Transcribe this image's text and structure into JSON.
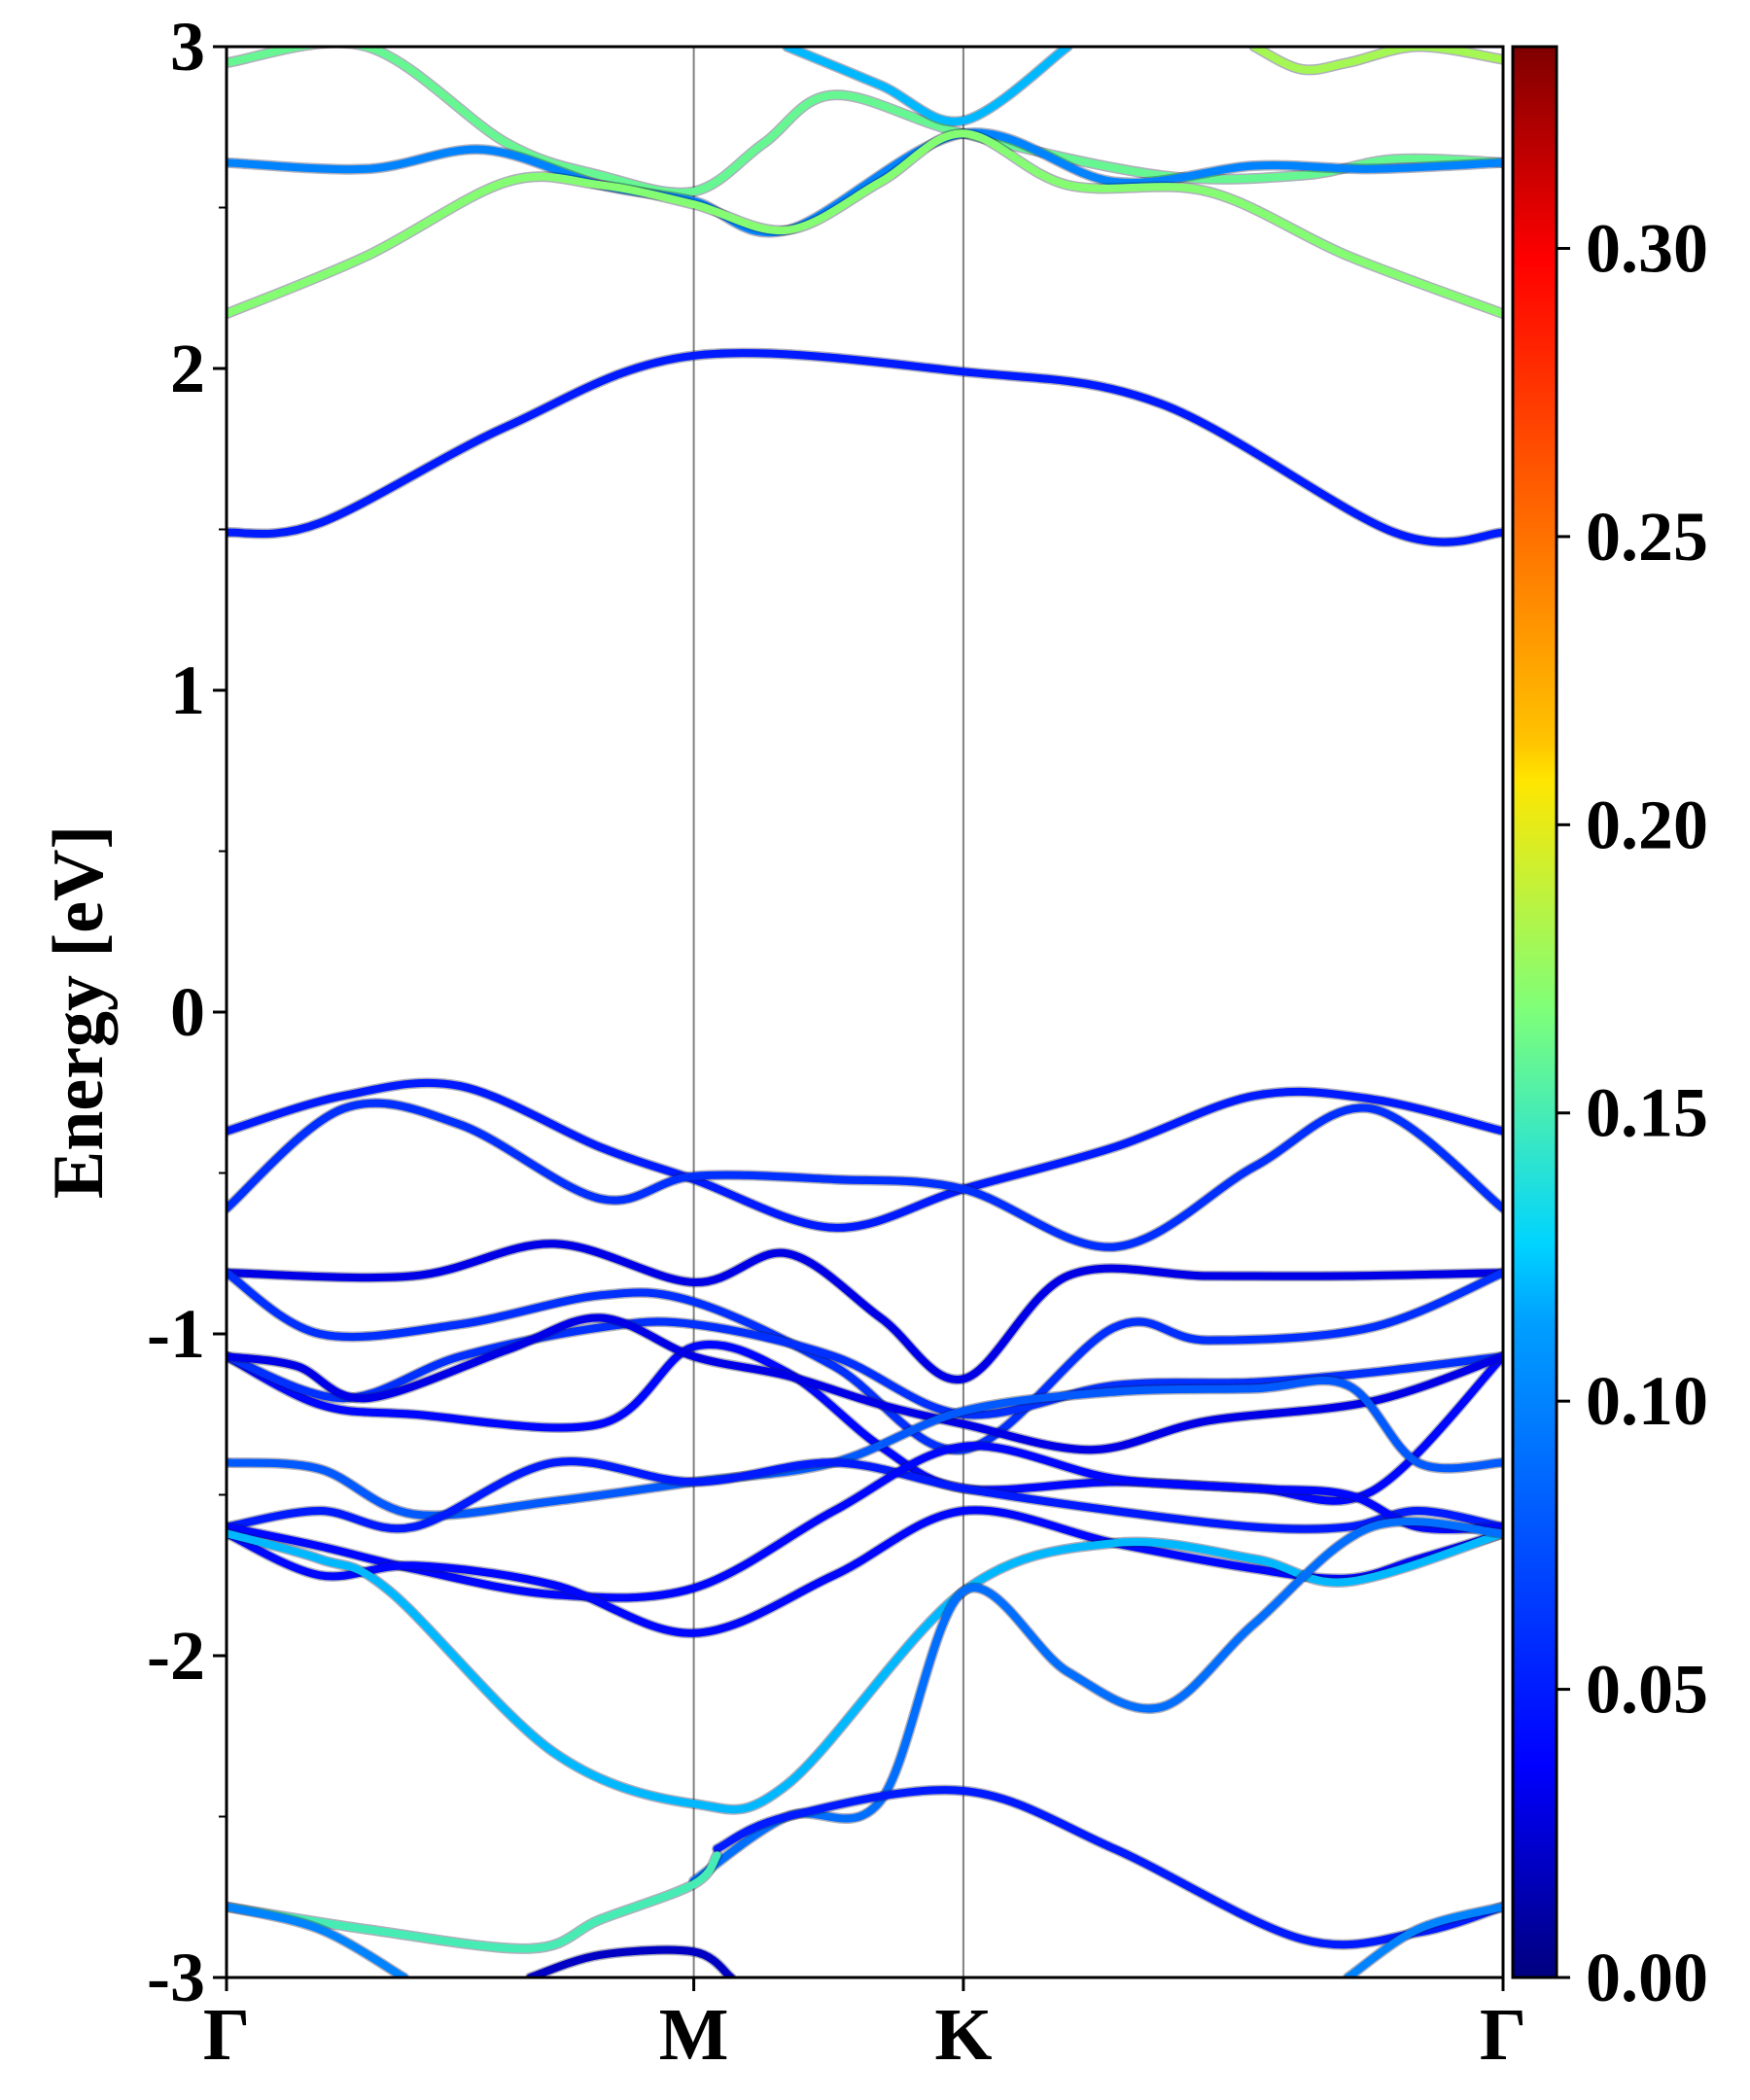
{
  "chart_data": {
    "type": "line",
    "title": "",
    "xlabel": "",
    "ylabel": "Energy [eV]",
    "ylim": [
      -3,
      3
    ],
    "xlim": [
      0,
      3
    ],
    "x_ticks": [
      {
        "pos": 0,
        "label": "Γ"
      },
      {
        "pos": 1,
        "label": "M"
      },
      {
        "pos": 1.577,
        "label": "K"
      },
      {
        "pos": 2.732,
        "label": "Γ"
      }
    ],
    "y_ticks": [
      {
        "value": 3,
        "label": "3"
      },
      {
        "value": 2,
        "label": "2"
      },
      {
        "value": 1,
        "label": "1"
      },
      {
        "value": 0,
        "label": "0"
      },
      {
        "value": -1,
        "label": "-1"
      },
      {
        "value": -2,
        "label": "-2"
      },
      {
        "value": -3,
        "label": "-3"
      }
    ],
    "y_minor_ticks": [
      2.5,
      1.5,
      0.5,
      -0.5,
      -1.5,
      -2.5
    ],
    "grid": false,
    "vertical_lines_at": [
      1,
      1.577
    ],
    "colorbar": {
      "colormap": "jet",
      "range": [
        0,
        0.335
      ],
      "ticks": [
        "0.00",
        "0.05",
        "0.10",
        "0.15",
        "0.20",
        "0.25",
        "0.30"
      ],
      "tick_values": [
        0,
        0.05,
        0.1,
        0.15,
        0.2,
        0.25,
        0.3
      ]
    },
    "series": [
      {
        "x": [
          0,
          0.3,
          0.6,
          0.8,
          1.0,
          1.15,
          1.3,
          1.577,
          2.0,
          2.3,
          2.5,
          2.732
        ],
        "values": [
          2.95,
          3.0,
          2.7,
          2.6,
          2.55,
          2.7,
          2.85,
          2.73,
          2.6,
          2.6,
          2.65,
          2.64
        ],
        "weight": 0.16
      },
      {
        "x": [
          0,
          0.3,
          0.55,
          0.8,
          1.0,
          1.2,
          1.577,
          1.9,
          2.2,
          2.45,
          2.732
        ],
        "values": [
          2.64,
          2.62,
          2.68,
          2.57,
          2.52,
          2.43,
          2.73,
          2.58,
          2.63,
          2.62,
          2.64
        ],
        "weight": 0.1
      },
      {
        "x": [
          0,
          0.3,
          0.6,
          0.8,
          1.0,
          1.2,
          1.4,
          1.577,
          1.8,
          2.1,
          2.4,
          2.732
        ],
        "values": [
          2.17,
          2.35,
          2.58,
          2.57,
          2.51,
          2.43,
          2.58,
          2.73,
          2.57,
          2.55,
          2.35,
          2.17
        ],
        "weight": 0.17
      },
      {
        "x": [
          1.2,
          1.4,
          1.577,
          1.8
        ],
        "values": [
          3.0,
          2.88,
          2.77,
          3.0
        ],
        "weight": 0.12
      },
      {
        "x": [
          2.2,
          2.3,
          2.4,
          2.55,
          2.732
        ],
        "values": [
          3.0,
          2.93,
          2.95,
          3.0,
          2.96
        ],
        "weight": 0.18
      },
      {
        "x": [
          0,
          0.2,
          0.6,
          1.0,
          1.577,
          2.0,
          2.5,
          2.732
        ],
        "values": [
          1.49,
          1.52,
          1.82,
          2.04,
          1.99,
          1.89,
          1.49,
          1.49
        ],
        "weight": 0.05
      },
      {
        "x": [
          0,
          0.25,
          0.5,
          0.8,
          1.0,
          1.3,
          1.577,
          1.9,
          2.2,
          2.45,
          2.732
        ],
        "values": [
          -0.37,
          -0.26,
          -0.23,
          -0.42,
          -0.52,
          -0.67,
          -0.55,
          -0.42,
          -0.26,
          -0.27,
          -0.37
        ],
        "weight": 0.05
      },
      {
        "x": [
          0,
          0.25,
          0.5,
          0.8,
          1.0,
          1.3,
          1.577,
          1.9,
          2.2,
          2.45,
          2.732
        ],
        "values": [
          -0.61,
          -0.3,
          -0.35,
          -0.58,
          -0.51,
          -0.52,
          -0.55,
          -0.73,
          -0.48,
          -0.3,
          -0.61
        ],
        "weight": 0.06
      },
      {
        "x": [
          0,
          0.4,
          0.7,
          1.0,
          1.2,
          1.4,
          1.577,
          1.8,
          2.1,
          2.4,
          2.732
        ],
        "values": [
          -0.81,
          -0.82,
          -0.72,
          -0.84,
          -0.75,
          -0.95,
          -1.14,
          -0.82,
          -0.82,
          -0.82,
          -0.81
        ],
        "weight": 0.03
      },
      {
        "x": [
          0,
          0.2,
          0.5,
          0.8,
          1.0,
          1.3,
          1.577,
          1.9,
          2.1,
          2.45,
          2.732
        ],
        "values": [
          -0.81,
          -1.0,
          -0.97,
          -0.88,
          -0.9,
          -1.1,
          -1.36,
          -0.98,
          -1.02,
          -0.98,
          -0.81
        ],
        "weight": 0.06
      },
      {
        "x": [
          0,
          0.2,
          0.4,
          0.8,
          1.0,
          1.2,
          1.4,
          1.577,
          1.9,
          2.2,
          2.45,
          2.732
        ],
        "values": [
          -1.07,
          -1.22,
          -1.25,
          -1.28,
          -1.04,
          -1.12,
          -1.35,
          -1.48,
          -1.46,
          -1.48,
          -1.49,
          -1.07
        ],
        "weight": 0.04
      },
      {
        "x": [
          0,
          0.25,
          0.5,
          0.8,
          1.0,
          1.3,
          1.577,
          1.9,
          2.2,
          2.45,
          2.732
        ],
        "values": [
          -1.07,
          -1.2,
          -1.07,
          -0.98,
          -0.97,
          -1.07,
          -1.25,
          -1.16,
          -1.15,
          -1.12,
          -1.07
        ],
        "weight": 0.06
      },
      {
        "x": [
          0,
          0.15,
          0.3,
          0.6,
          0.8,
          1.0,
          1.2,
          1.4,
          1.577,
          1.85,
          2.1,
          2.45,
          2.732
        ],
        "values": [
          -1.07,
          -1.1,
          -1.2,
          -1.05,
          -0.95,
          -1.07,
          -1.13,
          -1.22,
          -1.28,
          -1.36,
          -1.27,
          -1.21,
          -1.07
        ],
        "weight": 0.03
      },
      {
        "x": [
          0,
          0.2,
          0.4,
          0.7,
          1.0,
          1.3,
          1.577,
          1.9,
          2.2,
          2.4,
          2.55,
          2.732
        ],
        "values": [
          -1.4,
          -1.42,
          -1.56,
          -1.52,
          -1.46,
          -1.4,
          -1.24,
          -1.18,
          -1.17,
          -1.16,
          -1.4,
          -1.4
        ],
        "weight": 0.08
      },
      {
        "x": [
          0,
          0.2,
          0.4,
          0.7,
          1.0,
          1.3,
          1.577,
          1.9,
          2.2,
          2.4,
          2.55,
          2.732
        ],
        "values": [
          -1.6,
          -1.55,
          -1.6,
          -1.4,
          -1.46,
          -1.4,
          -1.48,
          -1.55,
          -1.6,
          -1.6,
          -1.55,
          -1.6
        ],
        "weight": 0.05
      },
      {
        "x": [
          0,
          0.2,
          0.4,
          0.7,
          1.0,
          1.3,
          1.577,
          1.9,
          2.2,
          2.4,
          2.55,
          2.732
        ],
        "values": [
          -1.6,
          -1.66,
          -1.73,
          -1.81,
          -1.79,
          -1.55,
          -1.35,
          -1.45,
          -1.48,
          -1.5,
          -1.6,
          -1.6
        ],
        "weight": 0.04
      },
      {
        "x": [
          0,
          0.2,
          0.4,
          0.7,
          1.0,
          1.3,
          1.577,
          1.9,
          2.2,
          2.4,
          2.55,
          2.732
        ],
        "values": [
          -1.62,
          -1.75,
          -1.72,
          -1.78,
          -1.93,
          -1.75,
          -1.55,
          -1.65,
          -1.73,
          -1.76,
          -1.7,
          -1.62
        ],
        "weight": 0.04
      },
      {
        "x": [
          0,
          0.2,
          0.35,
          0.7,
          1.0,
          1.2,
          1.577,
          1.9,
          2.2,
          2.4,
          2.732
        ],
        "values": [
          -1.62,
          -1.7,
          -1.8,
          -2.3,
          -2.46,
          -2.4,
          -1.8,
          -1.65,
          -1.7,
          -1.77,
          -1.62
        ],
        "weight": 0.12
      },
      {
        "x": [
          1.0,
          1.2,
          1.4,
          1.577,
          1.8,
          2.0,
          2.2,
          2.45,
          2.732
        ],
        "values": [
          -2.7,
          -2.5,
          -2.45,
          -1.8,
          -2.05,
          -2.16,
          -1.9,
          -1.6,
          -1.62
        ],
        "weight": 0.09
      },
      {
        "x": [
          1.05,
          1.2,
          1.577,
          1.9,
          2.3,
          2.55,
          2.732
        ],
        "values": [
          -2.6,
          -2.5,
          -2.42,
          -2.6,
          -2.88,
          -2.86,
          -2.78
        ],
        "weight": 0.05
      },
      {
        "x": [
          0,
          0.3,
          0.65,
          0.8,
          1.0,
          1.05
        ],
        "values": [
          -2.78,
          -2.85,
          -2.91,
          -2.82,
          -2.71,
          -2.62
        ],
        "weight": 0.15
      },
      {
        "x": [
          0,
          0.2,
          0.38
        ],
        "values": [
          -2.78,
          -2.85,
          -3.0
        ],
        "weight": 0.1
      },
      {
        "x": [
          0.65,
          0.8,
          1.0,
          1.08
        ],
        "values": [
          -3.0,
          -2.93,
          -2.92,
          -3.0
        ],
        "weight": 0.02
      },
      {
        "x": [
          2.4,
          2.55,
          2.732
        ],
        "values": [
          -3.0,
          -2.85,
          -2.78
        ],
        "weight": 0.1
      }
    ]
  }
}
